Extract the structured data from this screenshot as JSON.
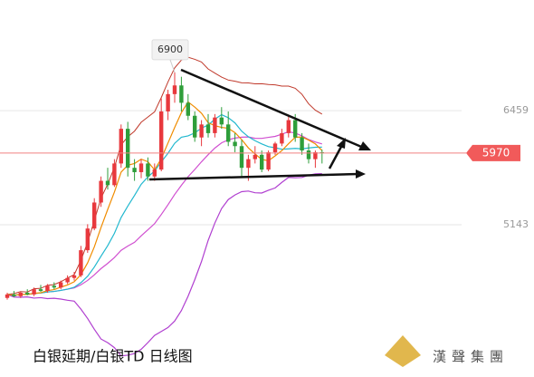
{
  "chart_data": {
    "type": "candlestick",
    "title": "白银延期/白银TD  日线图",
    "watermark": "漢聲集團",
    "up_color": "#e8383d",
    "down_color": "#2e9e3a",
    "open": [
      4300,
      4340,
      4320,
      4360,
      4340,
      4400,
      4380,
      4440,
      4420,
      4480,
      4530,
      4560,
      4850,
      5100,
      5400,
      5650,
      5600,
      5850,
      6250,
      5800,
      5750,
      5850,
      5700,
      5780,
      6450,
      6650,
      6750,
      6550,
      6400,
      6150,
      6300,
      6200,
      6380,
      6300,
      6100,
      6050,
      5800,
      5900,
      5950,
      5780,
      5980,
      6080,
      6200,
      6350,
      6150,
      6000,
      5900,
      5980
    ],
    "high": [
      4360,
      4380,
      4370,
      4400,
      4420,
      4450,
      4460,
      4480,
      4500,
      4560,
      4600,
      4900,
      5150,
      5450,
      5700,
      5800,
      5900,
      6300,
      6330,
      5900,
      5900,
      5920,
      5850,
      6600,
      6700,
      6900,
      6850,
      6650,
      6450,
      6350,
      6420,
      6420,
      6500,
      6450,
      6200,
      6120,
      5950,
      6050,
      6000,
      6000,
      6100,
      6250,
      6400,
      6420,
      6200,
      6080,
      6000,
      6010
    ],
    "low": [
      4280,
      4310,
      4300,
      4330,
      4320,
      4370,
      4360,
      4400,
      4400,
      4460,
      4500,
      4540,
      4820,
      5080,
      5350,
      5550,
      5580,
      5800,
      5700,
      5650,
      5680,
      5650,
      5650,
      5760,
      6350,
      6550,
      6450,
      6350,
      6100,
      6050,
      6150,
      6150,
      6250,
      6050,
      5980,
      5700,
      5650,
      5850,
      5750,
      5760,
      5950,
      6050,
      6150,
      6100,
      5950,
      5850,
      5800,
      5850
    ],
    "close": [
      4340,
      4320,
      4360,
      4340,
      4400,
      4380,
      4440,
      4420,
      4480,
      4530,
      4560,
      4850,
      5100,
      5400,
      5650,
      5600,
      5850,
      6250,
      5800,
      5750,
      5850,
      5700,
      5780,
      6450,
      6650,
      6750,
      6550,
      6400,
      6150,
      6300,
      6200,
      6380,
      6300,
      6100,
      6050,
      5800,
      5900,
      5950,
      5780,
      5980,
      6080,
      6200,
      6350,
      6150,
      6000,
      5900,
      5980,
      5970
    ],
    "ylim": [
      3430,
      7735
    ],
    "yticks": [
      6459,
      5143
    ]
  }
}
